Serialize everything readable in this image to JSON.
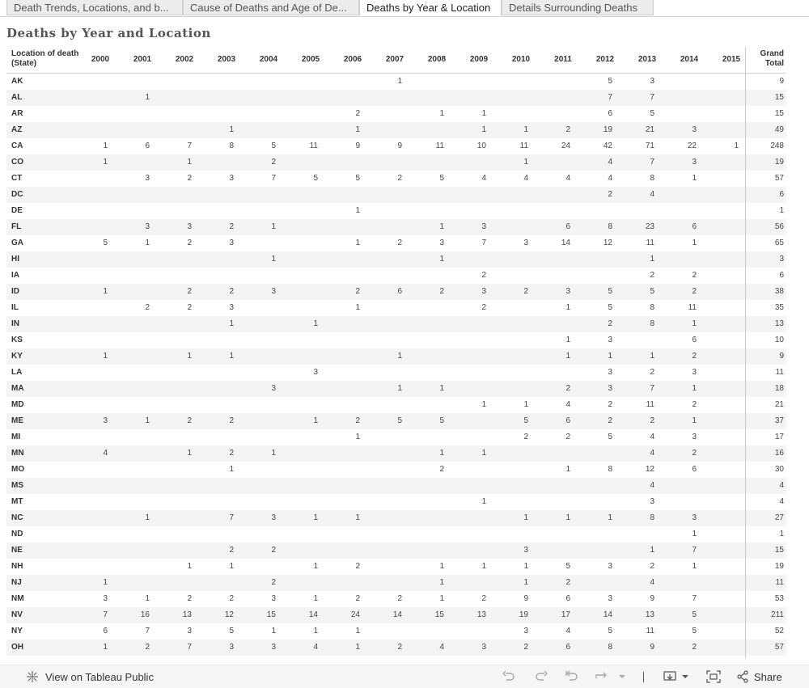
{
  "tabs": [
    {
      "label": "Death Trends, Locations, and b...",
      "active": false
    },
    {
      "label": "Cause of Deaths and Age of De...",
      "active": false
    },
    {
      "label": "Deaths by Year & Location",
      "active": true
    },
    {
      "label": "Details Surrounding Deaths",
      "active": false
    }
  ],
  "sheet_title": "Deaths by Year and Location",
  "table": {
    "row_header_label": "Location of death (State)",
    "years": [
      "2000",
      "2001",
      "2002",
      "2003",
      "2004",
      "2005",
      "2006",
      "2007",
      "2008",
      "2009",
      "2010",
      "2011",
      "2012",
      "2013",
      "2014",
      "2015"
    ],
    "grand_total_label": "Grand Total",
    "rows": [
      {
        "state": "AK",
        "values": [
          "",
          "",
          "",
          "",
          "",
          "",
          "",
          "1",
          "",
          "",
          "",
          "",
          "5",
          "3",
          "",
          ""
        ],
        "total": "9"
      },
      {
        "state": "AL",
        "values": [
          "",
          "1",
          "",
          "",
          "",
          "",
          "",
          "",
          "",
          "",
          "",
          "",
          "7",
          "7",
          "",
          ""
        ],
        "total": "15"
      },
      {
        "state": "AR",
        "values": [
          "",
          "",
          "",
          "",
          "",
          "",
          "2",
          "",
          "1",
          "1",
          "",
          "",
          "6",
          "5",
          "",
          ""
        ],
        "total": "15"
      },
      {
        "state": "AZ",
        "values": [
          "",
          "",
          "",
          "1",
          "",
          "",
          "1",
          "",
          "",
          "1",
          "1",
          "2",
          "19",
          "21",
          "3",
          ""
        ],
        "total": "49"
      },
      {
        "state": "CA",
        "values": [
          "1",
          "6",
          "7",
          "8",
          "5",
          "11",
          "9",
          "9",
          "11",
          "10",
          "11",
          "24",
          "42",
          "71",
          "22",
          "1"
        ],
        "total": "248"
      },
      {
        "state": "CO",
        "values": [
          "1",
          "",
          "1",
          "",
          "2",
          "",
          "",
          "",
          "",
          "",
          "1",
          "",
          "4",
          "7",
          "3",
          ""
        ],
        "total": "19"
      },
      {
        "state": "CT",
        "values": [
          "",
          "3",
          "2",
          "3",
          "7",
          "5",
          "5",
          "2",
          "5",
          "4",
          "4",
          "4",
          "4",
          "8",
          "1",
          ""
        ],
        "total": "57"
      },
      {
        "state": "DC",
        "values": [
          "",
          "",
          "",
          "",
          "",
          "",
          "",
          "",
          "",
          "",
          "",
          "",
          "2",
          "4",
          "",
          ""
        ],
        "total": "6"
      },
      {
        "state": "DE",
        "values": [
          "",
          "",
          "",
          "",
          "",
          "",
          "1",
          "",
          "",
          "",
          "",
          "",
          "",
          "",
          "",
          ""
        ],
        "total": "1"
      },
      {
        "state": "FL",
        "values": [
          "",
          "3",
          "3",
          "2",
          "1",
          "",
          "",
          "",
          "1",
          "3",
          "",
          "6",
          "8",
          "23",
          "6",
          ""
        ],
        "total": "56"
      },
      {
        "state": "GA",
        "values": [
          "5",
          "1",
          "2",
          "3",
          "",
          "",
          "1",
          "2",
          "3",
          "7",
          "3",
          "14",
          "12",
          "11",
          "1",
          ""
        ],
        "total": "65"
      },
      {
        "state": "HI",
        "values": [
          "",
          "",
          "",
          "",
          "1",
          "",
          "",
          "",
          "1",
          "",
          "",
          "",
          "",
          "1",
          "",
          ""
        ],
        "total": "3"
      },
      {
        "state": "IA",
        "values": [
          "",
          "",
          "",
          "",
          "",
          "",
          "",
          "",
          "",
          "2",
          "",
          "",
          "",
          "2",
          "2",
          ""
        ],
        "total": "6"
      },
      {
        "state": "ID",
        "values": [
          "1",
          "",
          "2",
          "2",
          "3",
          "",
          "2",
          "6",
          "2",
          "3",
          "2",
          "3",
          "5",
          "5",
          "2",
          ""
        ],
        "total": "38"
      },
      {
        "state": "IL",
        "values": [
          "",
          "2",
          "2",
          "3",
          "",
          "",
          "1",
          "",
          "",
          "2",
          "",
          "1",
          "5",
          "8",
          "11",
          ""
        ],
        "total": "35"
      },
      {
        "state": "IN",
        "values": [
          "",
          "",
          "",
          "1",
          "",
          "1",
          "",
          "",
          "",
          "",
          "",
          "",
          "2",
          "8",
          "1",
          ""
        ],
        "total": "13"
      },
      {
        "state": "KS",
        "values": [
          "",
          "",
          "",
          "",
          "",
          "",
          "",
          "",
          "",
          "",
          "",
          "1",
          "3",
          "",
          "6",
          ""
        ],
        "total": "10"
      },
      {
        "state": "KY",
        "values": [
          "1",
          "",
          "1",
          "1",
          "",
          "",
          "",
          "1",
          "",
          "",
          "",
          "1",
          "1",
          "1",
          "2",
          ""
        ],
        "total": "9"
      },
      {
        "state": "LA",
        "values": [
          "",
          "",
          "",
          "",
          "",
          "3",
          "",
          "",
          "",
          "",
          "",
          "",
          "3",
          "2",
          "3",
          ""
        ],
        "total": "11"
      },
      {
        "state": "MA",
        "values": [
          "",
          "",
          "",
          "",
          "3",
          "",
          "",
          "1",
          "1",
          "",
          "",
          "2",
          "3",
          "7",
          "1",
          ""
        ],
        "total": "18"
      },
      {
        "state": "MD",
        "values": [
          "",
          "",
          "",
          "",
          "",
          "",
          "",
          "",
          "",
          "1",
          "1",
          "4",
          "2",
          "11",
          "2",
          ""
        ],
        "total": "21"
      },
      {
        "state": "ME",
        "values": [
          "3",
          "1",
          "2",
          "2",
          "",
          "1",
          "2",
          "5",
          "5",
          "",
          "5",
          "6",
          "2",
          "2",
          "1",
          ""
        ],
        "total": "37"
      },
      {
        "state": "MI",
        "values": [
          "",
          "",
          "",
          "",
          "",
          "",
          "1",
          "",
          "",
          "",
          "2",
          "2",
          "5",
          "4",
          "3",
          ""
        ],
        "total": "17"
      },
      {
        "state": "MN",
        "values": [
          "4",
          "",
          "1",
          "2",
          "1",
          "",
          "",
          "",
          "1",
          "1",
          "",
          "",
          "",
          "4",
          "2",
          ""
        ],
        "total": "16"
      },
      {
        "state": "MO",
        "values": [
          "",
          "",
          "",
          "1",
          "",
          "",
          "",
          "",
          "2",
          "",
          "",
          "1",
          "8",
          "12",
          "6",
          ""
        ],
        "total": "30"
      },
      {
        "state": "MS",
        "values": [
          "",
          "",
          "",
          "",
          "",
          "",
          "",
          "",
          "",
          "",
          "",
          "",
          "",
          "4",
          "",
          ""
        ],
        "total": "4"
      },
      {
        "state": "MT",
        "values": [
          "",
          "",
          "",
          "",
          "",
          "",
          "",
          "",
          "",
          "1",
          "",
          "",
          "",
          "3",
          "",
          ""
        ],
        "total": "4"
      },
      {
        "state": "NC",
        "values": [
          "",
          "1",
          "",
          "7",
          "3",
          "1",
          "1",
          "",
          "",
          "",
          "1",
          "1",
          "1",
          "8",
          "3",
          ""
        ],
        "total": "27"
      },
      {
        "state": "ND",
        "values": [
          "",
          "",
          "",
          "",
          "",
          "",
          "",
          "",
          "",
          "",
          "",
          "",
          "",
          "",
          "1",
          ""
        ],
        "total": "1"
      },
      {
        "state": "NE",
        "values": [
          "",
          "",
          "",
          "2",
          "2",
          "",
          "",
          "",
          "",
          "",
          "3",
          "",
          "",
          "1",
          "7",
          ""
        ],
        "total": "15"
      },
      {
        "state": "NH",
        "values": [
          "",
          "",
          "1",
          "1",
          "",
          "1",
          "2",
          "",
          "1",
          "1",
          "1",
          "5",
          "3",
          "2",
          "1",
          ""
        ],
        "total": "19"
      },
      {
        "state": "NJ",
        "values": [
          "1",
          "",
          "",
          "",
          "2",
          "",
          "",
          "",
          "1",
          "",
          "1",
          "2",
          "",
          "4",
          "",
          ""
        ],
        "total": "11"
      },
      {
        "state": "NM",
        "values": [
          "3",
          "1",
          "2",
          "2",
          "3",
          "1",
          "2",
          "2",
          "1",
          "2",
          "9",
          "6",
          "3",
          "9",
          "7",
          ""
        ],
        "total": "53"
      },
      {
        "state": "NV",
        "values": [
          "7",
          "16",
          "13",
          "12",
          "15",
          "14",
          "24",
          "14",
          "15",
          "13",
          "19",
          "17",
          "14",
          "13",
          "5",
          ""
        ],
        "total": "211"
      },
      {
        "state": "NY",
        "values": [
          "6",
          "7",
          "3",
          "5",
          "1",
          "1",
          "1",
          "",
          "",
          "",
          "3",
          "4",
          "5",
          "11",
          "5",
          ""
        ],
        "total": "52"
      },
      {
        "state": "OH",
        "values": [
          "1",
          "2",
          "7",
          "3",
          "3",
          "4",
          "1",
          "2",
          "4",
          "3",
          "2",
          "6",
          "8",
          "9",
          "2",
          ""
        ],
        "total": "57"
      }
    ]
  },
  "footer": {
    "view_label": "View on Tableau Public",
    "share_label": "Share"
  }
}
